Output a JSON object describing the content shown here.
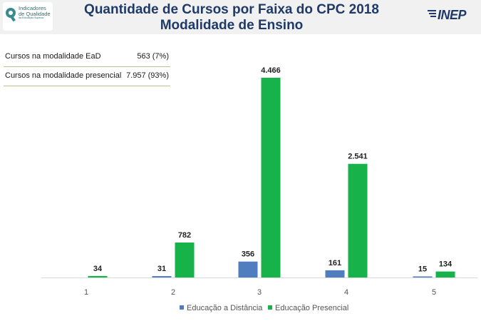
{
  "header": {
    "logo": {
      "line1": "Indicadores",
      "line2": "de Qualidade",
      "line3": "da Educação Superior"
    },
    "brand": "INEP"
  },
  "summary": [
    {
      "label": "Cursos na modalidade EaD",
      "value": "563 (7%)"
    },
    {
      "label": "Cursos na modalidade presencial",
      "value": "7.957 (93%)"
    }
  ],
  "colors": {
    "ead": "#4f7dc0",
    "presencial": "#17b24a",
    "title": "#1f3a68",
    "axis": "#d9d9d9"
  },
  "chart_data": {
    "type": "bar",
    "title": "Quantidade de Cursos por Faixa do CPC 2018",
    "subtitle": "Modalidade de Ensino",
    "xlabel": "",
    "ylabel": "",
    "categories": [
      "1",
      "2",
      "3",
      "4",
      "5"
    ],
    "ylim": [
      0,
      4466
    ],
    "grid": false,
    "legend": "bottom",
    "series": [
      {
        "name": "Educação a Distância",
        "values": [
          null,
          31,
          356,
          161,
          15
        ],
        "labels": [
          "",
          "31",
          "356",
          "161",
          "15"
        ]
      },
      {
        "name": "Educação Presencial",
        "values": [
          34,
          782,
          4466,
          2541,
          134
        ],
        "labels": [
          "34",
          "782",
          "4.466",
          "2.541",
          "134"
        ]
      }
    ]
  }
}
